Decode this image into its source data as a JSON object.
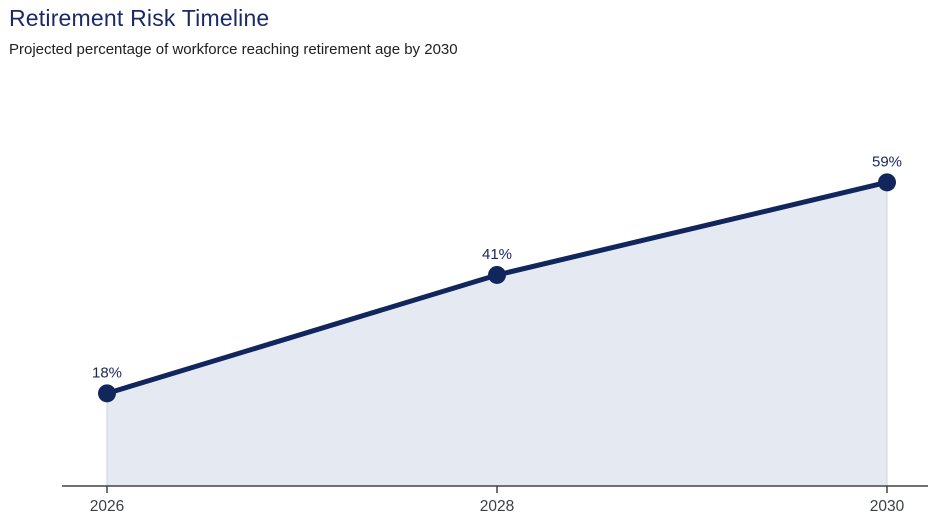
{
  "page": {
    "title": "Retirement Risk Timeline",
    "subtitle": "Projected percentage of workforce reaching retirement age by 2030"
  },
  "chart_data": {
    "type": "area",
    "title": "Retirement Risk Timeline",
    "subtitle": "Projected percentage of workforce reaching retirement age by 2030",
    "categories": [
      "2026",
      "2028",
      "2030"
    ],
    "values": [
      18,
      41,
      59
    ],
    "data_labels": [
      "18%",
      "41%",
      "59%"
    ],
    "series": [
      {
        "name": "Percentage of workforce reaching retirement age",
        "values": [
          18,
          41,
          59
        ]
      }
    ],
    "xlabel": "",
    "ylabel": "",
    "ylim": [
      0,
      75
    ],
    "grid": false,
    "legend": false,
    "layout_hints": {
      "x_axis_position": "bottom",
      "data_label_position": "above-point"
    },
    "colors": {
      "line": "#12265e",
      "point": "#12265e",
      "area_fill": "#e5e9f2",
      "area_edge": "#cdd3e0",
      "axis_line": "#424242",
      "tick_label": "#3c4043",
      "data_label": "#17265c",
      "title": "#1b2a66",
      "subtitle": "#202124"
    }
  }
}
